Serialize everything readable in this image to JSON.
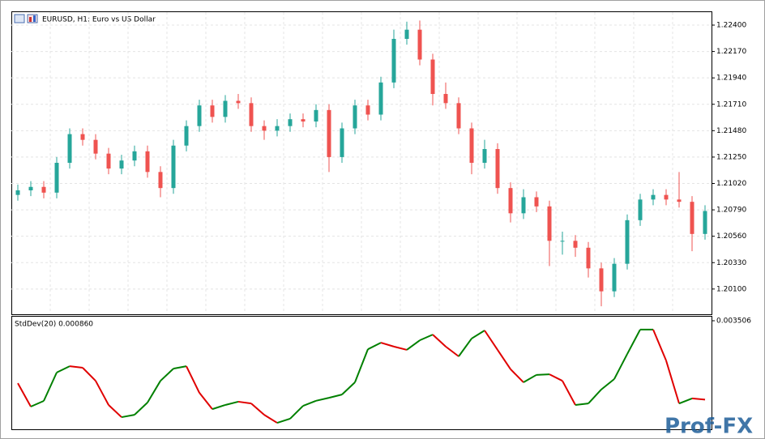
{
  "chart_data": [
    {
      "type": "candlestick",
      "title": "EURUSD, H1:  Euro vs US Dollar",
      "up_color": "#26a69a",
      "down_color": "#ef5350",
      "grid": true,
      "ylim": [
        1.1988,
        1.2252
      ],
      "yticks": [
        {
          "value": 1.224,
          "label": "1.22400"
        },
        {
          "value": 1.2217,
          "label": "1.22170"
        },
        {
          "value": 1.2194,
          "label": "1.21940"
        },
        {
          "value": 1.2171,
          "label": "1.21710"
        },
        {
          "value": 1.2148,
          "label": "1.21480"
        },
        {
          "value": 1.2125,
          "label": "1.21250"
        },
        {
          "value": 1.2102,
          "label": "1.21020"
        },
        {
          "value": 1.2079,
          "label": "1.20790"
        },
        {
          "value": 1.2056,
          "label": "1.20560"
        },
        {
          "value": 1.2033,
          "label": "1.20330"
        },
        {
          "value": 1.201,
          "label": "1.20100"
        }
      ],
      "open": [
        1.2092,
        1.2096,
        1.2099,
        1.2094,
        1.212,
        1.2145,
        1.214,
        1.2128,
        1.2115,
        1.2122,
        1.213,
        1.2112,
        1.2098,
        1.2135,
        1.2152,
        1.217,
        1.216,
        1.2174,
        1.2172,
        1.2152,
        1.2148,
        1.2152,
        1.2158,
        1.2156,
        1.2166,
        1.2125,
        1.215,
        1.217,
        1.2162,
        1.219,
        1.2228,
        1.2236,
        1.221,
        1.218,
        1.2172,
        1.215,
        1.212,
        1.2132,
        1.2098,
        1.2076,
        1.209,
        1.2082,
        1.2052,
        1.2052,
        1.2046,
        1.2028,
        1.2008,
        1.2032,
        1.207,
        1.2088,
        1.2092,
        1.2088,
        1.2086,
        1.2058
      ],
      "high": [
        1.2101,
        1.2104,
        1.2104,
        1.2125,
        1.215,
        1.215,
        1.2145,
        1.2133,
        1.2127,
        1.2135,
        1.2135,
        1.2117,
        1.214,
        1.2157,
        1.2175,
        1.2175,
        1.2179,
        1.218,
        1.2177,
        1.2157,
        1.2158,
        1.2163,
        1.2163,
        1.2171,
        1.2171,
        1.2155,
        1.2175,
        1.2175,
        1.2195,
        1.2236,
        1.2243,
        1.2244,
        1.2215,
        1.219,
        1.2177,
        1.2155,
        1.214,
        1.2137,
        1.2103,
        1.2097,
        1.2095,
        1.2087,
        1.206,
        1.2057,
        1.2051,
        1.2033,
        1.2037,
        1.2075,
        1.2093,
        1.2097,
        1.2097,
        1.2112,
        1.2091,
        1.2083
      ],
      "low": [
        1.2087,
        1.2091,
        1.2089,
        1.2089,
        1.2115,
        1.2135,
        1.2123,
        1.211,
        1.211,
        1.2117,
        1.2107,
        1.209,
        1.2093,
        1.213,
        1.2147,
        1.2155,
        1.2155,
        1.2167,
        1.2147,
        1.214,
        1.2143,
        1.2147,
        1.2151,
        1.2151,
        1.2112,
        1.212,
        1.2145,
        1.2157,
        1.2157,
        1.2185,
        1.2223,
        1.2205,
        1.217,
        1.2167,
        1.2145,
        1.211,
        1.2115,
        1.2093,
        1.2068,
        1.2071,
        1.2077,
        1.203,
        1.204,
        1.2038,
        1.202,
        1.1995,
        1.2003,
        1.2027,
        1.2065,
        1.2083,
        1.2083,
        1.2081,
        1.2043,
        1.2053
      ],
      "close": [
        1.2096,
        1.2099,
        1.2094,
        1.212,
        1.2145,
        1.214,
        1.2128,
        1.2115,
        1.2122,
        1.213,
        1.2112,
        1.2098,
        1.2135,
        1.2152,
        1.217,
        1.216,
        1.2174,
        1.2172,
        1.2152,
        1.2148,
        1.2152,
        1.2158,
        1.2156,
        1.2166,
        1.2125,
        1.215,
        1.217,
        1.2162,
        1.219,
        1.2228,
        1.2236,
        1.221,
        1.218,
        1.2172,
        1.215,
        1.212,
        1.2132,
        1.2098,
        1.2076,
        1.209,
        1.2082,
        1.2052,
        1.2052,
        1.2046,
        1.2028,
        1.2008,
        1.2032,
        1.207,
        1.2088,
        1.2092,
        1.2088,
        1.2086,
        1.2058,
        1.2078
      ]
    },
    {
      "type": "line",
      "title": "StdDev(20) 0.000860",
      "up_color": "#008000",
      "down_color": "#e00000",
      "ylim": [
        0,
        0.003506
      ],
      "yticks": [
        0.003506
      ],
      "values": [
        0.00141,
        0.000625,
        0.000815,
        0.00177,
        0.00198,
        0.00193,
        0.00149,
        0.00068,
        0.00027,
        0.00035,
        0.00076,
        0.00149,
        0.0019,
        0.00198,
        0.00109,
        0.00054,
        0.00068,
        0.00079,
        0.00073,
        0.00035,
        8e-05,
        0.00022,
        0.00065,
        0.00082,
        0.00092,
        0.00103,
        0.00144,
        0.00255,
        0.00277,
        0.00264,
        0.00253,
        0.00285,
        0.00304,
        0.00264,
        0.00231,
        0.00291,
        0.00318,
        0.00253,
        0.00188,
        0.00144,
        0.00169,
        0.00171,
        0.00149,
        0.00068,
        0.00073,
        0.0012,
        0.00155,
        0.00239,
        0.00321,
        0.00321,
        0.00217,
        0.00073,
        0.0009,
        0.00086
      ]
    }
  ],
  "watermark": "Prof-FX"
}
